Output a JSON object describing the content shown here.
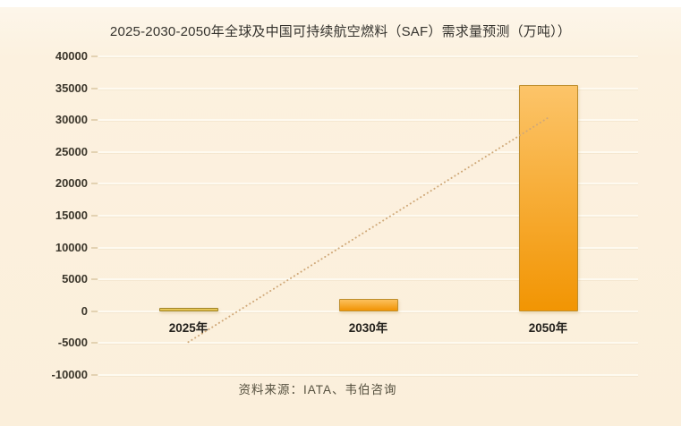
{
  "page": {
    "background": "#ffffff",
    "panel_background": "#fcf1df"
  },
  "chart_data": {
    "type": "bar",
    "title": "2025-2030-2050年全球及中国可持续航空燃料（SAF）需求量预测（万吨））",
    "source": "资料来源：IATA、韦伯咨询",
    "categories": [
      "2025年",
      "2030年",
      "2050年"
    ],
    "values": [
      600,
      1900,
      35500
    ],
    "xlabel": "",
    "ylabel": "",
    "ylim": [
      -10000,
      40000
    ],
    "ytick_step": 5000,
    "ytick_labels": [
      "40000",
      "35000",
      "30000",
      "25000",
      "20000",
      "15000",
      "10000",
      "5000",
      "0",
      "-5000",
      "-10000"
    ],
    "grid": true,
    "legend": false,
    "trendline": {
      "style": "dotted",
      "start_value": -4833,
      "end_value": 30367,
      "color": "#cfa878"
    },
    "bar_styles": [
      {
        "fill_top": "#ecd06b",
        "fill_bottom": "#d9b23a",
        "border": "#a08427"
      },
      {
        "fill_top": "#fcc05c",
        "fill_bottom": "#f19303",
        "border": "#bd8e2e"
      },
      {
        "fill_top": "#fcc469",
        "fill_bottom": "#f29503",
        "border": "#bd8e2e"
      }
    ]
  }
}
